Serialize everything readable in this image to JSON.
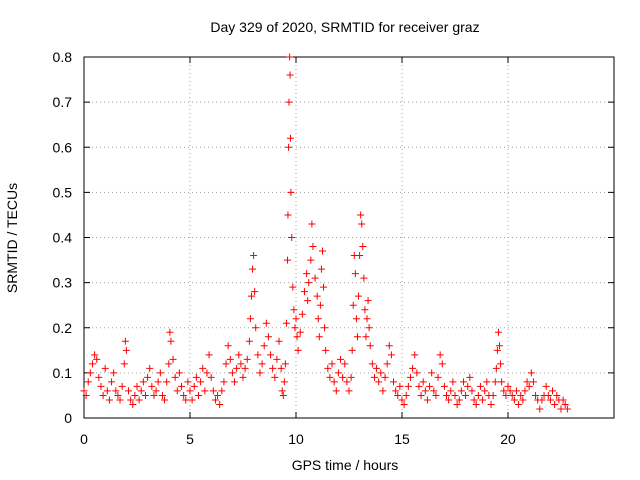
{
  "chart_data": {
    "type": "scatter",
    "title": "Day 329 of 2020, SRMTID for receiver graz",
    "xlabel": "GPS time / hours",
    "ylabel": "SRMTID / TECUs",
    "xlim": [
      0,
      25
    ],
    "ylim": [
      0,
      0.8
    ],
    "xticks": [
      0,
      5,
      10,
      15,
      20
    ],
    "yticks": [
      0,
      0.1,
      0.2,
      0.3,
      0.4,
      0.5,
      0.6,
      0.7,
      0.8
    ],
    "xtick_labels": [
      "0",
      "5",
      "10",
      "15",
      "20"
    ],
    "ytick_labels": [
      "0",
      "0.1",
      "0.2",
      "0.3",
      "0.4",
      "0.5",
      "0.6",
      "0.7",
      "0.8"
    ],
    "grid": true,
    "marker": "+",
    "color": "#ff0000",
    "series": [
      {
        "name": "SRMTID",
        "points": [
          [
            0.0,
            0.06
          ],
          [
            0.1,
            0.05
          ],
          [
            0.2,
            0.08
          ],
          [
            0.3,
            0.1
          ],
          [
            0.4,
            0.12
          ],
          [
            0.5,
            0.14
          ],
          [
            0.6,
            0.13
          ],
          [
            0.7,
            0.09
          ],
          [
            0.8,
            0.07
          ],
          [
            0.9,
            0.05
          ],
          [
            1.0,
            0.11
          ],
          [
            1.1,
            0.06
          ],
          [
            1.2,
            0.04
          ],
          [
            1.3,
            0.08
          ],
          [
            1.4,
            0.1
          ],
          [
            1.5,
            0.06
          ],
          [
            1.6,
            0.05
          ],
          [
            1.7,
            0.04
          ],
          [
            1.8,
            0.07
          ],
          [
            1.9,
            0.12
          ],
          [
            1.95,
            0.17
          ],
          [
            2.0,
            0.15
          ],
          [
            2.1,
            0.06
          ],
          [
            2.2,
            0.04
          ],
          [
            2.3,
            0.03
          ],
          [
            2.4,
            0.05
          ],
          [
            2.5,
            0.07
          ],
          [
            2.6,
            0.04
          ],
          [
            2.7,
            0.06
          ],
          [
            2.8,
            0.08
          ],
          [
            2.9,
            0.05
          ],
          [
            3.0,
            0.09
          ],
          [
            3.1,
            0.11
          ],
          [
            3.2,
            0.07
          ],
          [
            3.3,
            0.05
          ],
          [
            3.4,
            0.06
          ],
          [
            3.5,
            0.08
          ],
          [
            3.6,
            0.1
          ],
          [
            3.7,
            0.05
          ],
          [
            3.8,
            0.04
          ],
          [
            3.9,
            0.08
          ],
          [
            4.0,
            0.12
          ],
          [
            4.05,
            0.19
          ],
          [
            4.1,
            0.17
          ],
          [
            4.2,
            0.13
          ],
          [
            4.3,
            0.09
          ],
          [
            4.4,
            0.06
          ],
          [
            4.5,
            0.1
          ],
          [
            4.6,
            0.07
          ],
          [
            4.7,
            0.05
          ],
          [
            4.8,
            0.04
          ],
          [
            4.9,
            0.08
          ],
          [
            5.0,
            0.06
          ],
          [
            5.1,
            0.04
          ],
          [
            5.2,
            0.07
          ],
          [
            5.3,
            0.09
          ],
          [
            5.4,
            0.05
          ],
          [
            5.5,
            0.08
          ],
          [
            5.6,
            0.11
          ],
          [
            5.7,
            0.06
          ],
          [
            5.8,
            0.1
          ],
          [
            5.9,
            0.14
          ],
          [
            6.0,
            0.09
          ],
          [
            6.1,
            0.06
          ],
          [
            6.2,
            0.04
          ],
          [
            6.3,
            0.05
          ],
          [
            6.4,
            0.03
          ],
          [
            6.5,
            0.06
          ],
          [
            6.6,
            0.08
          ],
          [
            6.7,
            0.12
          ],
          [
            6.8,
            0.16
          ],
          [
            6.9,
            0.13
          ],
          [
            7.0,
            0.1
          ],
          [
            7.1,
            0.08
          ],
          [
            7.2,
            0.11
          ],
          [
            7.3,
            0.14
          ],
          [
            7.4,
            0.12
          ],
          [
            7.5,
            0.09
          ],
          [
            7.6,
            0.11
          ],
          [
            7.7,
            0.13
          ],
          [
            7.8,
            0.17
          ],
          [
            7.85,
            0.22
          ],
          [
            7.9,
            0.27
          ],
          [
            7.95,
            0.33
          ],
          [
            8.0,
            0.36
          ],
          [
            8.05,
            0.28
          ],
          [
            8.1,
            0.2
          ],
          [
            8.2,
            0.14
          ],
          [
            8.3,
            0.1
          ],
          [
            8.4,
            0.12
          ],
          [
            8.5,
            0.16
          ],
          [
            8.6,
            0.21
          ],
          [
            8.7,
            0.18
          ],
          [
            8.8,
            0.14
          ],
          [
            8.9,
            0.11
          ],
          [
            9.0,
            0.09
          ],
          [
            9.1,
            0.13
          ],
          [
            9.2,
            0.17
          ],
          [
            9.3,
            0.11
          ],
          [
            9.35,
            0.06
          ],
          [
            9.4,
            0.05
          ],
          [
            9.45,
            0.08
          ],
          [
            9.5,
            0.12
          ],
          [
            9.55,
            0.21
          ],
          [
            9.6,
            0.35
          ],
          [
            9.62,
            0.45
          ],
          [
            9.65,
            0.6
          ],
          [
            9.67,
            0.7
          ],
          [
            9.7,
            0.8
          ],
          [
            9.72,
            0.76
          ],
          [
            9.74,
            0.62
          ],
          [
            9.76,
            0.5
          ],
          [
            9.8,
            0.4
          ],
          [
            9.85,
            0.29
          ],
          [
            9.9,
            0.24
          ],
          [
            9.95,
            0.2
          ],
          [
            10.0,
            0.22
          ],
          [
            10.05,
            0.18
          ],
          [
            10.1,
            0.15
          ],
          [
            10.2,
            0.19
          ],
          [
            10.3,
            0.23
          ],
          [
            10.4,
            0.28
          ],
          [
            10.5,
            0.32
          ],
          [
            10.55,
            0.26
          ],
          [
            10.6,
            0.3
          ],
          [
            10.7,
            0.35
          ],
          [
            10.75,
            0.43
          ],
          [
            10.8,
            0.38
          ],
          [
            10.9,
            0.31
          ],
          [
            11.0,
            0.27
          ],
          [
            11.05,
            0.22
          ],
          [
            11.1,
            0.18
          ],
          [
            11.15,
            0.25
          ],
          [
            11.2,
            0.33
          ],
          [
            11.25,
            0.37
          ],
          [
            11.3,
            0.29
          ],
          [
            11.35,
            0.2
          ],
          [
            11.4,
            0.15
          ],
          [
            11.5,
            0.11
          ],
          [
            11.6,
            0.09
          ],
          [
            11.7,
            0.12
          ],
          [
            11.8,
            0.08
          ],
          [
            11.9,
            0.06
          ],
          [
            12.0,
            0.1
          ],
          [
            12.1,
            0.13
          ],
          [
            12.2,
            0.09
          ],
          [
            12.3,
            0.12
          ],
          [
            12.4,
            0.08
          ],
          [
            12.5,
            0.06
          ],
          [
            12.6,
            0.09
          ],
          [
            12.65,
            0.15
          ],
          [
            12.7,
            0.25
          ],
          [
            12.75,
            0.36
          ],
          [
            12.8,
            0.32
          ],
          [
            12.85,
            0.22
          ],
          [
            12.9,
            0.18
          ],
          [
            12.95,
            0.27
          ],
          [
            13.0,
            0.36
          ],
          [
            13.05,
            0.45
          ],
          [
            13.1,
            0.43
          ],
          [
            13.15,
            0.38
          ],
          [
            13.2,
            0.31
          ],
          [
            13.25,
            0.24
          ],
          [
            13.3,
            0.18
          ],
          [
            13.35,
            0.22
          ],
          [
            13.4,
            0.26
          ],
          [
            13.45,
            0.2
          ],
          [
            13.5,
            0.16
          ],
          [
            13.6,
            0.12
          ],
          [
            13.7,
            0.09
          ],
          [
            13.8,
            0.11
          ],
          [
            13.9,
            0.08
          ],
          [
            14.0,
            0.1
          ],
          [
            14.1,
            0.06
          ],
          [
            14.2,
            0.09
          ],
          [
            14.3,
            0.12
          ],
          [
            14.4,
            0.16
          ],
          [
            14.5,
            0.14
          ],
          [
            14.6,
            0.08
          ],
          [
            14.7,
            0.06
          ],
          [
            14.8,
            0.05
          ],
          [
            14.9,
            0.07
          ],
          [
            15.0,
            0.04
          ],
          [
            15.1,
            0.03
          ],
          [
            15.2,
            0.05
          ],
          [
            15.3,
            0.07
          ],
          [
            15.4,
            0.09
          ],
          [
            15.5,
            0.11
          ],
          [
            15.6,
            0.14
          ],
          [
            15.7,
            0.1
          ],
          [
            15.8,
            0.07
          ],
          [
            15.9,
            0.05
          ],
          [
            16.0,
            0.08
          ],
          [
            16.1,
            0.06
          ],
          [
            16.2,
            0.04
          ],
          [
            16.3,
            0.07
          ],
          [
            16.4,
            0.1
          ],
          [
            16.5,
            0.06
          ],
          [
            16.6,
            0.05
          ],
          [
            16.7,
            0.09
          ],
          [
            16.8,
            0.14
          ],
          [
            16.9,
            0.12
          ],
          [
            17.0,
            0.07
          ],
          [
            17.1,
            0.05
          ],
          [
            17.2,
            0.04
          ],
          [
            17.3,
            0.06
          ],
          [
            17.4,
            0.08
          ],
          [
            17.5,
            0.05
          ],
          [
            17.6,
            0.03
          ],
          [
            17.7,
            0.04
          ],
          [
            17.8,
            0.06
          ],
          [
            17.9,
            0.08
          ],
          [
            18.0,
            0.05
          ],
          [
            18.1,
            0.07
          ],
          [
            18.2,
            0.09
          ],
          [
            18.3,
            0.06
          ],
          [
            18.4,
            0.04
          ],
          [
            18.5,
            0.03
          ],
          [
            18.6,
            0.05
          ],
          [
            18.7,
            0.07
          ],
          [
            18.8,
            0.04
          ],
          [
            18.9,
            0.06
          ],
          [
            19.0,
            0.08
          ],
          [
            19.1,
            0.05
          ],
          [
            19.2,
            0.03
          ],
          [
            19.3,
            0.05
          ],
          [
            19.4,
            0.08
          ],
          [
            19.45,
            0.11
          ],
          [
            19.5,
            0.15
          ],
          [
            19.55,
            0.19
          ],
          [
            19.6,
            0.16
          ],
          [
            19.65,
            0.12
          ],
          [
            19.7,
            0.08
          ],
          [
            19.8,
            0.06
          ],
          [
            19.9,
            0.05
          ],
          [
            20.0,
            0.07
          ],
          [
            20.1,
            0.06
          ],
          [
            20.2,
            0.05
          ],
          [
            20.3,
            0.04
          ],
          [
            20.4,
            0.06
          ],
          [
            20.5,
            0.03
          ],
          [
            20.6,
            0.05
          ],
          [
            20.7,
            0.04
          ],
          [
            20.8,
            0.06
          ],
          [
            20.9,
            0.08
          ],
          [
            21.0,
            0.07
          ],
          [
            21.1,
            0.1
          ],
          [
            21.2,
            0.08
          ],
          [
            21.3,
            0.05
          ],
          [
            21.4,
            0.04
          ],
          [
            21.5,
            0.02
          ],
          [
            21.6,
            0.04
          ],
          [
            21.7,
            0.05
          ],
          [
            21.8,
            0.07
          ],
          [
            21.9,
            0.05
          ],
          [
            22.0,
            0.04
          ],
          [
            22.1,
            0.06
          ],
          [
            22.2,
            0.03
          ],
          [
            22.3,
            0.05
          ],
          [
            22.4,
            0.04
          ],
          [
            22.5,
            0.02
          ],
          [
            22.6,
            0.04
          ],
          [
            22.7,
            0.03
          ],
          [
            22.8,
            0.02
          ]
        ]
      }
    ]
  }
}
